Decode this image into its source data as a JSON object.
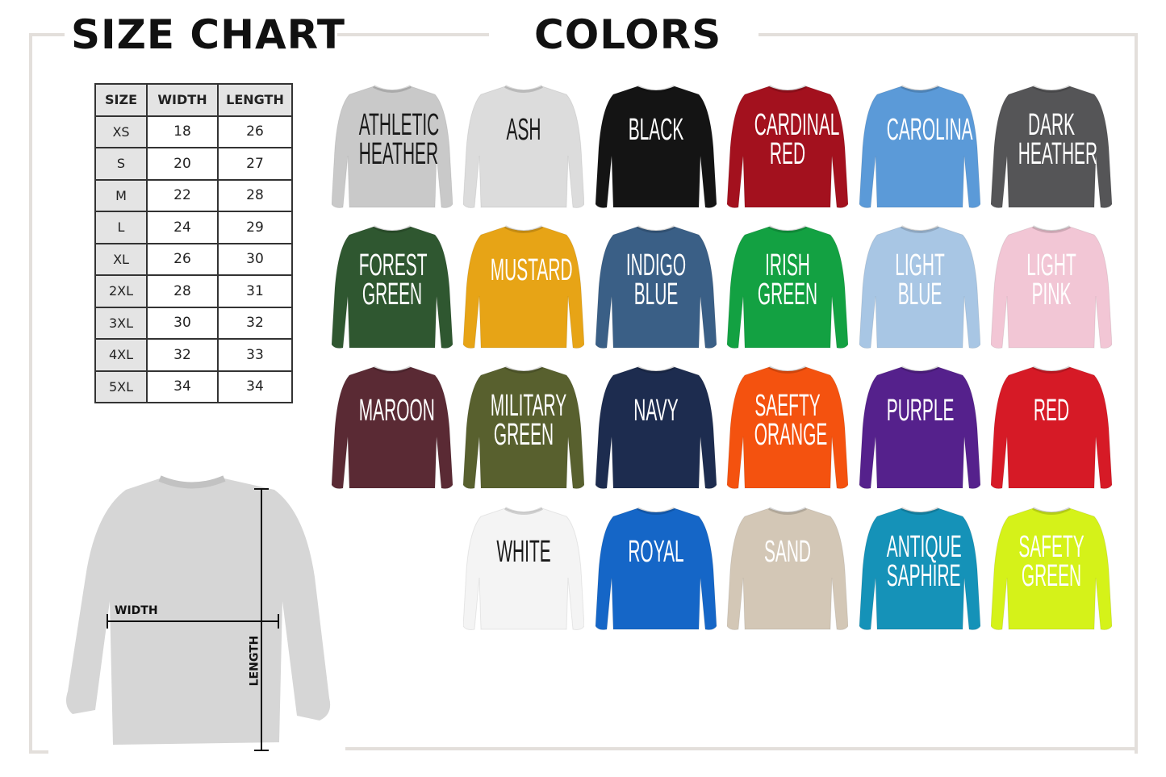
{
  "size_chart": {
    "title": "SIZE CHART",
    "headers": [
      "SIZE",
      "WIDTH",
      "LENGTH"
    ],
    "rows": [
      [
        "XS",
        "18",
        "26"
      ],
      [
        "S",
        "20",
        "27"
      ],
      [
        "M",
        "22",
        "28"
      ],
      [
        "L",
        "24",
        "29"
      ],
      [
        "XL",
        "26",
        "30"
      ],
      [
        "2XL",
        "28",
        "31"
      ],
      [
        "3XL",
        "30",
        "32"
      ],
      [
        "4XL",
        "32",
        "33"
      ],
      [
        "5XL",
        "34",
        "34"
      ]
    ],
    "diagram": {
      "width_label": "WIDTH",
      "length_label": "LENGTH"
    }
  },
  "colors": {
    "title": "COLORS",
    "items": [
      {
        "name": "ATHLETIC\nHEATHER",
        "fill": "#c9c9c9",
        "text": "#1a1a1a"
      },
      {
        "name": "ASH",
        "fill": "#dcdcdc",
        "text": "#1a1a1a"
      },
      {
        "name": "BLACK",
        "fill": "#141414",
        "text": "#ffffff"
      },
      {
        "name": "CARDINAL\nRED",
        "fill": "#a3111e",
        "text": "#ffffff"
      },
      {
        "name": "CAROLINA",
        "fill": "#5b9ad8",
        "text": "#ffffff"
      },
      {
        "name": "DARK\nHEATHER",
        "fill": "#555557",
        "text": "#ffffff"
      },
      {
        "name": "FOREST\nGREEN",
        "fill": "#2f5730",
        "text": "#ffffff"
      },
      {
        "name": "MUSTARD",
        "fill": "#e7a416",
        "text": "#ffffff"
      },
      {
        "name": "INDIGO\nBLUE",
        "fill": "#3a5f86",
        "text": "#ffffff"
      },
      {
        "name": "IRISH\nGREEN",
        "fill": "#13a142",
        "text": "#ffffff"
      },
      {
        "name": "LIGHT\nBLUE",
        "fill": "#a8c6e4",
        "text": "#ffffff"
      },
      {
        "name": "LIGHT\nPINK",
        "fill": "#f2c6d5",
        "text": "#ffffff"
      },
      {
        "name": "MAROON",
        "fill": "#5a2a34",
        "text": "#ffffff"
      },
      {
        "name": "MILITARY\nGREEN",
        "fill": "#58602e",
        "text": "#ffffff"
      },
      {
        "name": "NAVY",
        "fill": "#1d2c4f",
        "text": "#ffffff"
      },
      {
        "name": "SAEFTY\nORANGE",
        "fill": "#f4520f",
        "text": "#ffffff"
      },
      {
        "name": "PURPLE",
        "fill": "#55218c",
        "text": "#ffffff"
      },
      {
        "name": "RED",
        "fill": "#d61a26",
        "text": "#ffffff"
      },
      {
        "name": "WHITE",
        "fill": "#f4f4f4",
        "text": "#1a1a1a"
      },
      {
        "name": "ROYAL",
        "fill": "#1566c7",
        "text": "#ffffff"
      },
      {
        "name": "SAND",
        "fill": "#d3c7b6",
        "text": "#ffffff"
      },
      {
        "name": "ANTIQUE\nSAPHIRE",
        "fill": "#1592b8",
        "text": "#ffffff"
      },
      {
        "name": "SAFETY\nGREEN",
        "fill": "#d5f219",
        "text": "#ffffff"
      }
    ]
  }
}
